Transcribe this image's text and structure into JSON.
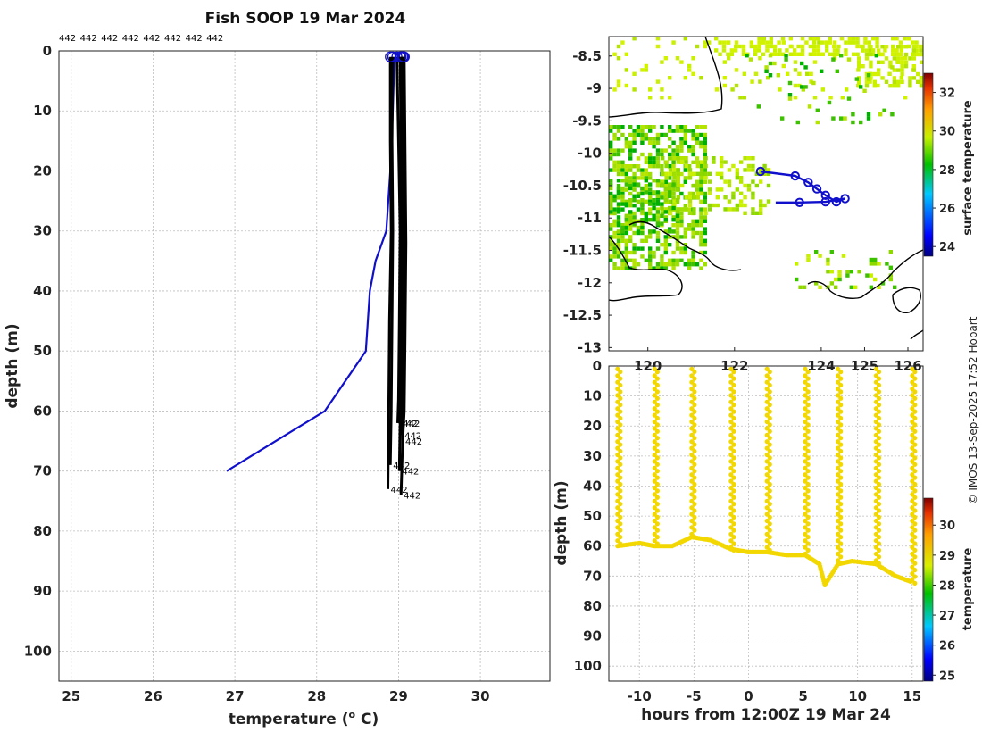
{
  "credit": "© IMOS 13-Sep-2025 17:52 Hobart",
  "chart_data": [
    {
      "type": "line",
      "name": "profile",
      "title": "Fish SOOP 19 Mar 2024",
      "xlabel": "temperature (°C)",
      "xlabel_parts": {
        "main": "temperature (",
        "sup": "o",
        "end": " C)"
      },
      "ylabel": "depth (m)",
      "xlim": [
        24.85,
        30.85
      ],
      "ylim": [
        105,
        0
      ],
      "xticks": [
        25,
        26,
        27,
        28,
        29,
        30
      ],
      "yticks": [
        0,
        10,
        20,
        30,
        40,
        50,
        60,
        70,
        80,
        90,
        100
      ],
      "top_labels": [
        "442",
        "442",
        "442",
        "442",
        "442",
        "442",
        "442",
        "442"
      ],
      "series": [
        {
          "name": "climatology",
          "color": "#1010cc",
          "x": [
            28.95,
            28.93,
            28.9,
            28.85,
            28.72,
            28.65,
            28.6,
            28.1,
            26.9
          ],
          "y": [
            1,
            10,
            20,
            30,
            35,
            40,
            50,
            60,
            70
          ]
        },
        {
          "name": "cast 1",
          "color": "#000000",
          "x": [
            28.98,
            29.0,
            29.02,
            29.01,
            29.0,
            28.99
          ],
          "y": [
            1,
            15,
            30,
            45,
            58,
            62
          ],
          "end_label": "442"
        },
        {
          "name": "cast 2",
          "color": "#000000",
          "x": [
            29.03,
            29.04,
            29.05,
            29.05,
            29.04,
            29.02
          ],
          "y": [
            1,
            12,
            28,
            44,
            56,
            62
          ],
          "end_label": "442"
        },
        {
          "name": "cast 3",
          "color": "#000000",
          "x": [
            29.05,
            29.06,
            29.08,
            29.07,
            29.06,
            29.04
          ],
          "y": [
            1,
            14,
            30,
            46,
            58,
            64
          ],
          "end_label": "442"
        },
        {
          "name": "cast 4",
          "color": "#000000",
          "x": [
            29.07,
            29.08,
            29.09,
            29.08,
            29.07,
            29.05
          ],
          "y": [
            1,
            16,
            32,
            48,
            60,
            65
          ],
          "end_label": "442"
        },
        {
          "name": "cast 5",
          "color": "#000000",
          "x": [
            28.93,
            28.92,
            28.93,
            28.92,
            28.91,
            28.9
          ],
          "y": [
            1,
            15,
            30,
            45,
            60,
            69
          ],
          "end_label": "442"
        },
        {
          "name": "cast 6",
          "color": "#000000",
          "x": [
            29.02,
            29.03,
            29.04,
            29.03,
            29.02,
            29.01
          ],
          "y": [
            1,
            16,
            32,
            48,
            62,
            70
          ],
          "end_label": "442"
        },
        {
          "name": "cast 7",
          "color": "#000000",
          "x": [
            28.9,
            28.9,
            28.91,
            28.89,
            28.88,
            28.87
          ],
          "y": [
            1,
            15,
            30,
            45,
            60,
            73
          ],
          "end_label": "442"
        },
        {
          "name": "cast 8",
          "color": "#000000",
          "x": [
            29.06,
            29.07,
            29.07,
            29.06,
            29.05,
            29.03
          ],
          "y": [
            1,
            15,
            32,
            50,
            65,
            74
          ],
          "end_label": "442"
        }
      ]
    },
    {
      "type": "heatmap",
      "name": "map",
      "colorbar_label": "surface temperature",
      "clim": [
        23.5,
        33
      ],
      "colorbar_ticks": [
        24,
        26,
        28,
        30,
        32
      ],
      "xlim": [
        119.1,
        126.35
      ],
      "ylim": [
        -13.05,
        -8.2
      ],
      "xticks": [
        120,
        122,
        124,
        125,
        126
      ],
      "xtick_labels": [
        "120",
        "122",
        "124",
        "125",
        "126"
      ],
      "yticks": [
        -8.5,
        -9,
        -9.5,
        -10,
        -10.5,
        -11,
        -11.5,
        -12,
        -12.5,
        -13
      ],
      "ytick_labels": [
        "-8.5",
        "-9",
        "-9.5",
        "-10",
        "-10.5",
        "-11",
        "-11.5",
        "-12",
        "-12.5",
        "-13"
      ],
      "track": {
        "color": "#1010cc",
        "lon": [
          122.6,
          123.4,
          123.7,
          123.9,
          124.1,
          124.35,
          124.55,
          124.1,
          123.5,
          122.95
        ],
        "lat": [
          -10.28,
          -10.35,
          -10.45,
          -10.55,
          -10.65,
          -10.75,
          -10.7,
          -10.75,
          -10.76,
          -10.76
        ],
        "markers": [
          0,
          1,
          2,
          3,
          4,
          5,
          6,
          7,
          8
        ]
      }
    },
    {
      "type": "scatter",
      "name": "section",
      "xlabel": "hours from 12:00Z 19 Mar 24",
      "ylabel": "depth (m)",
      "colorbar_label": "temperature",
      "clim": [
        24.8,
        30.9
      ],
      "colorbar_ticks": [
        25,
        26,
        27,
        28,
        29,
        30
      ],
      "xlim": [
        -12.8,
        16.0
      ],
      "ylim": [
        105,
        0
      ],
      "xticks": [
        -10,
        -5,
        0,
        5,
        10,
        15
      ],
      "yticks": [
        0,
        10,
        20,
        30,
        40,
        50,
        60,
        70,
        80,
        90,
        100
      ],
      "point_value": 29.0,
      "point_color": "#f2d800",
      "casts": [
        {
          "t": -12.0,
          "bottom": 60
        },
        {
          "t": -8.6,
          "bottom": 60
        },
        {
          "t": -5.2,
          "bottom": 58
        },
        {
          "t": -1.6,
          "bottom": 61
        },
        {
          "t": 1.7,
          "bottom": 62
        },
        {
          "t": 5.2,
          "bottom": 63
        },
        {
          "t": 8.2,
          "bottom": 66
        },
        {
          "t": 11.7,
          "bottom": 66
        },
        {
          "t": 15.0,
          "bottom": 72
        }
      ],
      "bottom_trace": {
        "t": [
          -12.0,
          -10.0,
          -8.6,
          -7.0,
          -5.2,
          -3.5,
          -1.6,
          0.0,
          1.7,
          3.5,
          5.2,
          6.5,
          7.0,
          8.2,
          9.5,
          11.7,
          13.5,
          15.0
        ],
        "depth": [
          60,
          59,
          60,
          60,
          57,
          58,
          61,
          62,
          62,
          63,
          63,
          66,
          73,
          66,
          65,
          66,
          70,
          72
        ]
      }
    }
  ]
}
